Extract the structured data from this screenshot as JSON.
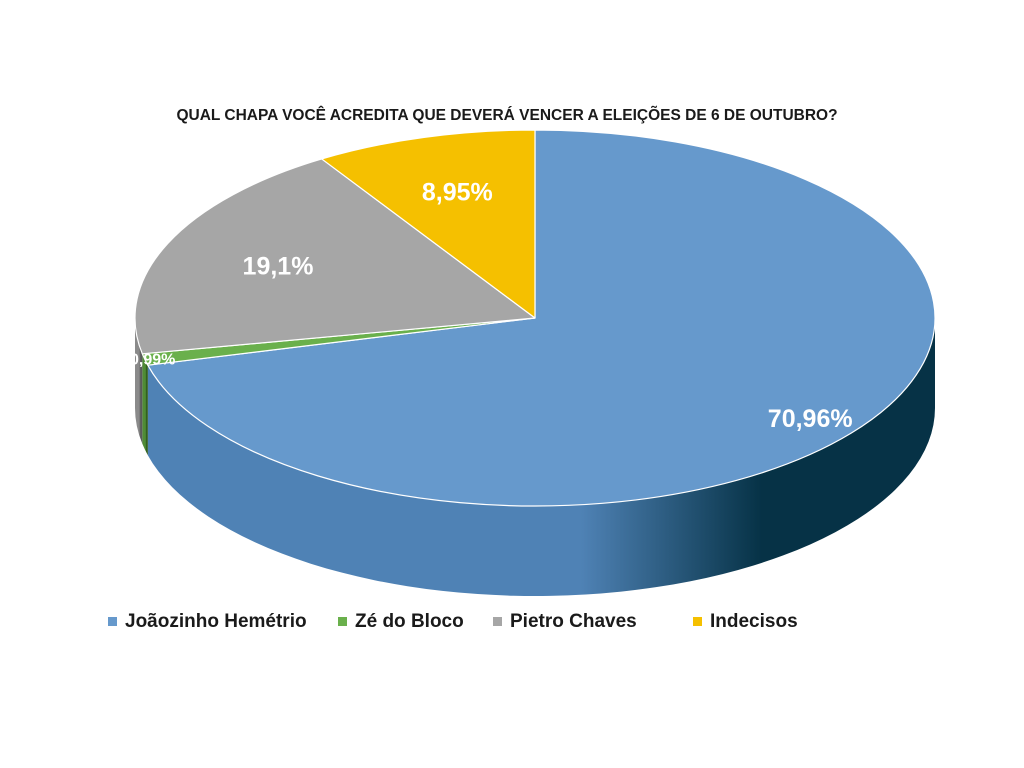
{
  "chart_data": {
    "type": "pie",
    "title": "QUAL CHAPA VOCÊ ACREDITA QUE DEVERÁ VENCER A ELEIÇÕES DE 6 DE OUTUBRO?",
    "style": "3d",
    "legend_position": "bottom",
    "slices": [
      {
        "label": "Joãozinho Hemétrio",
        "value": 70.96,
        "display": "70,96%",
        "color": "#6699cc",
        "side_light": "#4f82b5",
        "side_dark": "#063246"
      },
      {
        "label": "Zé do Bloco",
        "value": 0.99,
        "display": "0,99%",
        "color": "#6ab04c",
        "side_light": "#4f8c36",
        "side_dark": "#2d5a1c"
      },
      {
        "label": "Pietro Chaves",
        "value": 19.1,
        "display": "19,1%",
        "color": "#a6a6a6",
        "side_light": "#8a8a8a",
        "side_dark": "#5a5a5a"
      },
      {
        "label": "Indecisos",
        "value": 8.95,
        "display": "8,95%",
        "color": "#f5c000",
        "side_light": "#d4a500",
        "side_dark": "#8a6b00"
      }
    ]
  }
}
